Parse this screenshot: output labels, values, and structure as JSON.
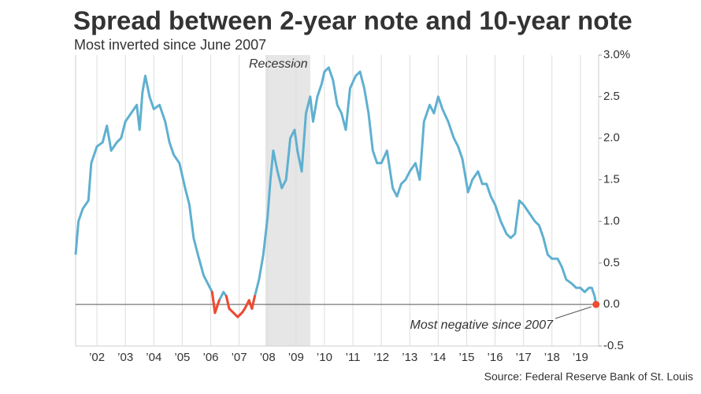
{
  "chart_data": {
    "type": "line",
    "title": "Spread between 2-year note and 10-year note",
    "subtitle": "Most inverted since June 2007",
    "source": "Source: Federal Reserve Bank of St. Louis",
    "annotation": "Most negative since 2007",
    "recession": {
      "label": "Recession",
      "start": 2007.92,
      "end": 2009.5
    },
    "color": "#5fb0d0",
    "negative_color": "#f04a2f",
    "x": [
      2001.25,
      2001.35,
      2001.5,
      2001.7,
      2001.8,
      2002.0,
      2002.2,
      2002.35,
      2002.5,
      2002.7,
      2002.85,
      2003.0,
      2003.2,
      2003.4,
      2003.5,
      2003.6,
      2003.7,
      2003.85,
      2004.0,
      2004.2,
      2004.4,
      2004.55,
      2004.7,
      2004.9,
      2005.1,
      2005.25,
      2005.4,
      2005.55,
      2005.75,
      2005.9,
      2006.05,
      2006.15,
      2006.3,
      2006.45,
      2006.55,
      2006.65,
      2006.8,
      2006.95,
      2007.1,
      2007.2,
      2007.35,
      2007.45,
      2007.55,
      2007.7,
      2007.85,
      2008.0,
      2008.1,
      2008.2,
      2008.35,
      2008.5,
      2008.65,
      2008.8,
      2008.95,
      2009.05,
      2009.2,
      2009.35,
      2009.5,
      2009.6,
      2009.75,
      2009.9,
      2010.0,
      2010.15,
      2010.3,
      2010.45,
      2010.6,
      2010.75,
      2010.9,
      2011.1,
      2011.25,
      2011.4,
      2011.55,
      2011.7,
      2011.85,
      2012.0,
      2012.2,
      2012.4,
      2012.55,
      2012.7,
      2012.85,
      2013.0,
      2013.2,
      2013.35,
      2013.5,
      2013.7,
      2013.85,
      2014.0,
      2014.15,
      2014.35,
      2014.55,
      2014.7,
      2014.85,
      2015.05,
      2015.2,
      2015.4,
      2015.55,
      2015.7,
      2015.85,
      2016.0,
      2016.2,
      2016.4,
      2016.55,
      2016.7,
      2016.85,
      2017.0,
      2017.2,
      2017.4,
      2017.55,
      2017.7,
      2017.85,
      2018.0,
      2018.2,
      2018.35,
      2018.5,
      2018.7,
      2018.85,
      2019.0,
      2019.15,
      2019.3,
      2019.4,
      2019.5,
      2019.55
    ],
    "values": [
      0.6,
      1.0,
      1.15,
      1.25,
      1.7,
      1.9,
      1.95,
      2.15,
      1.85,
      1.95,
      2.0,
      2.2,
      2.3,
      2.4,
      2.1,
      2.55,
      2.75,
      2.5,
      2.35,
      2.4,
      2.2,
      1.95,
      1.8,
      1.7,
      1.4,
      1.2,
      0.8,
      0.6,
      0.35,
      0.25,
      0.15,
      -0.1,
      0.05,
      0.15,
      0.1,
      -0.05,
      -0.1,
      -0.15,
      -0.1,
      -0.05,
      0.05,
      -0.05,
      0.1,
      0.3,
      0.6,
      1.05,
      1.5,
      1.85,
      1.6,
      1.4,
      1.5,
      2.0,
      2.1,
      1.85,
      1.6,
      2.3,
      2.5,
      2.2,
      2.5,
      2.65,
      2.8,
      2.85,
      2.7,
      2.4,
      2.3,
      2.1,
      2.6,
      2.75,
      2.8,
      2.6,
      2.3,
      1.85,
      1.7,
      1.7,
      1.85,
      1.4,
      1.3,
      1.45,
      1.5,
      1.6,
      1.7,
      1.5,
      2.2,
      2.4,
      2.3,
      2.5,
      2.35,
      2.2,
      2.0,
      1.9,
      1.75,
      1.35,
      1.5,
      1.6,
      1.45,
      1.45,
      1.3,
      1.2,
      1.0,
      0.85,
      0.8,
      0.85,
      1.25,
      1.2,
      1.1,
      1.0,
      0.95,
      0.8,
      0.6,
      0.55,
      0.55,
      0.45,
      0.3,
      0.25,
      0.2,
      0.2,
      0.15,
      0.2,
      0.2,
      0.1,
      0.0
    ],
    "xlim": [
      2001.25,
      2019.64
    ],
    "xticks": [
      {
        "value": 2002,
        "label": "’02"
      },
      {
        "value": 2003,
        "label": "’03"
      },
      {
        "value": 2004,
        "label": "’04"
      },
      {
        "value": 2005,
        "label": "’05"
      },
      {
        "value": 2006,
        "label": "’06"
      },
      {
        "value": 2007,
        "label": "’07"
      },
      {
        "value": 2008,
        "label": "’08"
      },
      {
        "value": 2009,
        "label": "’09"
      },
      {
        "value": 2010,
        "label": "’10"
      },
      {
        "value": 2011,
        "label": "’11"
      },
      {
        "value": 2012,
        "label": "’12"
      },
      {
        "value": 2013,
        "label": "’13"
      },
      {
        "value": 2014,
        "label": "’14"
      },
      {
        "value": 2015,
        "label": "’15"
      },
      {
        "value": 2016,
        "label": "’16"
      },
      {
        "value": 2017,
        "label": "’17"
      },
      {
        "value": 2018,
        "label": "’18"
      },
      {
        "value": 2019,
        "label": "’19"
      }
    ],
    "ylim": [
      -0.5,
      3.0
    ],
    "yticks": [
      {
        "value": 3,
        "label": "3.0%"
      },
      2.5,
      {
        "value": 2,
        "label": "2.0"
      },
      1.5,
      {
        "value": 1,
        "label": "1.0"
      },
      0.5,
      {
        "value": 0,
        "label": "0.0"
      },
      -0.5
    ],
    "grid": true
  }
}
